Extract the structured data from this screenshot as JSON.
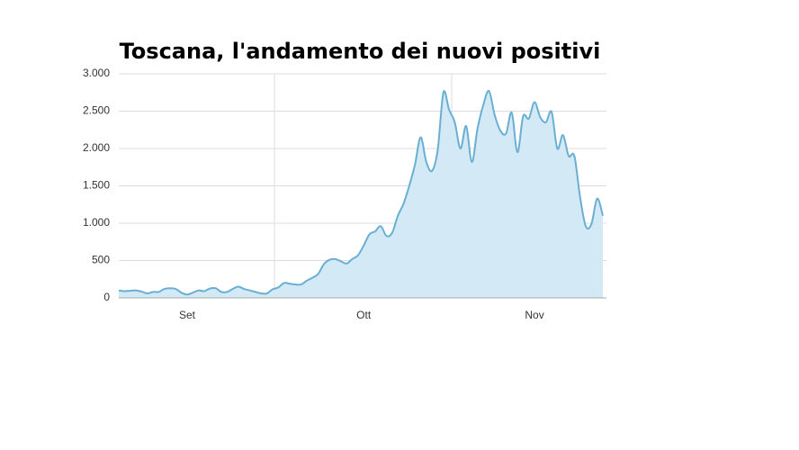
{
  "chart_data": {
    "type": "area",
    "title": "Toscana, l'andamento dei nuovi positivi",
    "categories": [
      null,
      null,
      null,
      null,
      null,
      null,
      null,
      null,
      null,
      null,
      null,
      null,
      "Set",
      null,
      null,
      null,
      null,
      null,
      null,
      null,
      null,
      null,
      null,
      null,
      null,
      null,
      null,
      null,
      null,
      null,
      null,
      null,
      null,
      null,
      null,
      null,
      null,
      null,
      null,
      null,
      null,
      null,
      null,
      "Ott",
      null,
      null,
      null,
      null,
      null,
      null,
      null,
      null,
      null,
      null,
      null,
      null,
      null,
      null,
      null,
      null,
      null,
      null,
      null,
      null,
      null,
      null,
      null,
      null,
      null,
      null,
      null,
      null,
      null,
      "Nov",
      null,
      null,
      null,
      null,
      null,
      null,
      null,
      null,
      null,
      null,
      null,
      null
    ],
    "values": [
      100,
      90,
      95,
      100,
      85,
      60,
      80,
      80,
      120,
      130,
      120,
      70,
      45,
      70,
      100,
      90,
      125,
      130,
      80,
      80,
      120,
      150,
      120,
      100,
      80,
      60,
      60,
      115,
      140,
      200,
      190,
      180,
      180,
      230,
      270,
      320,
      450,
      510,
      520,
      490,
      460,
      520,
      570,
      700,
      850,
      890,
      960,
      830,
      870,
      1100,
      1260,
      1500,
      1780,
      2150,
      1820,
      1700,
      1980,
      2750,
      2520,
      2350,
      2000,
      2300,
      1820,
      2270,
      2580,
      2770,
      2450,
      2240,
      2200,
      2480,
      1950,
      2430,
      2400,
      2620,
      2420,
      2350,
      2490,
      2000,
      2180,
      1900,
      1900,
      1350,
      960,
      990,
      1330,
      1100
    ],
    "color": "#6aafd2",
    "fill": "#d3e9f6",
    "ylim": [
      0,
      3000
    ],
    "yticks": [
      0,
      500,
      {
        "value": 1000,
        "label": "1.000"
      },
      {
        "value": 1500,
        "label": "1.500"
      },
      {
        "value": 2000,
        "label": "2.000"
      },
      {
        "value": 2500,
        "label": "2.500"
      },
      {
        "value": 3000,
        "label": "3.000"
      }
    ],
    "grid": true
  }
}
